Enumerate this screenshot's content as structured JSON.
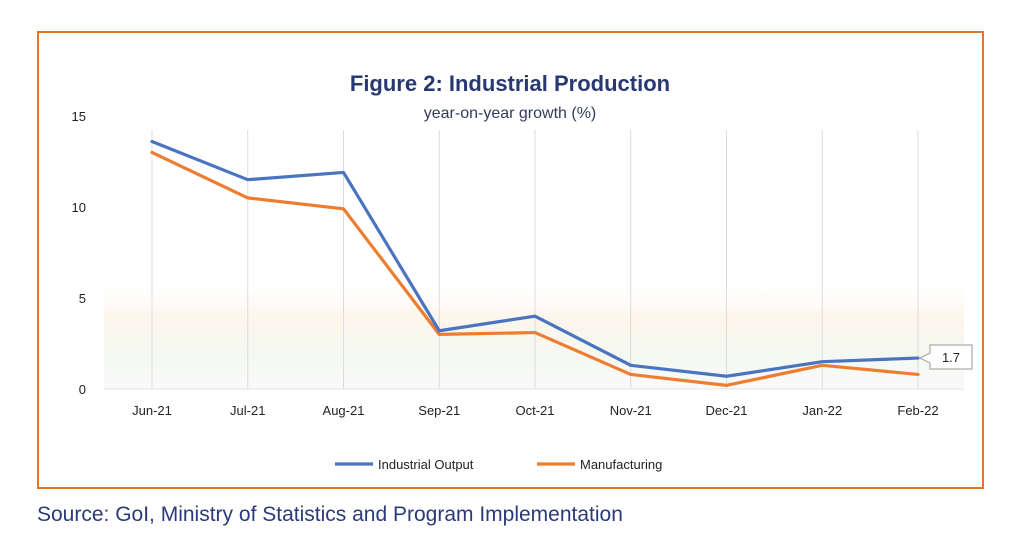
{
  "source": "Source: GoI, Ministry of Statistics and Program Implementation",
  "chart_data": {
    "type": "line",
    "title": "Figure 2: Industrial Production",
    "subtitle": "year-on-year growth (%)",
    "xlabel": "",
    "ylabel": "",
    "categories": [
      "Jun-21",
      "Jul-21",
      "Aug-21",
      "Sep-21",
      "Oct-21",
      "Nov-21",
      "Dec-21",
      "Jan-22",
      "Feb-22"
    ],
    "ylim": [
      0,
      15
    ],
    "yticks": [
      0,
      5,
      10,
      15
    ],
    "grid": "vertical",
    "legend": "bottom",
    "series": [
      {
        "name": "Industrial Output",
        "color": "#4a73c0",
        "values": [
          13.6,
          11.5,
          11.9,
          3.2,
          4.0,
          1.3,
          0.7,
          1.5,
          1.7
        ]
      },
      {
        "name": "Manufacturing",
        "color": "#ee7d2f",
        "values": [
          13.0,
          10.5,
          9.9,
          3.0,
          3.1,
          0.8,
          0.2,
          1.3,
          0.8
        ]
      }
    ],
    "annotations": [
      {
        "series": "Industrial Output",
        "category": "Feb-22",
        "text": "1.7"
      }
    ]
  }
}
